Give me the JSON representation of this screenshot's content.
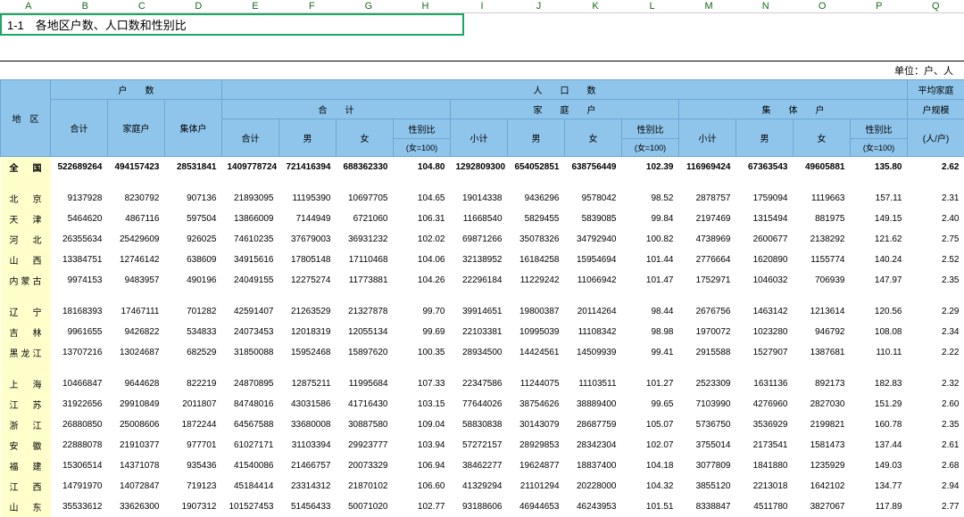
{
  "cols": [
    "A",
    "B",
    "C",
    "D",
    "E",
    "F",
    "G",
    "H",
    "I",
    "J",
    "K",
    "L",
    "M",
    "N",
    "O",
    "P",
    "Q"
  ],
  "formula": "1-1　各地区户数、人口数和性别比",
  "unit": "单位：户、人",
  "hdr": {
    "region": "地　区",
    "hh_group": "户　　数",
    "hh_total": "合计",
    "hh_family": "家庭户",
    "hh_collective": "集体户",
    "pop_group": "人　　口　　数",
    "sub_total": "合　　计",
    "sub_family": "家　　庭　　户",
    "sub_collective": "集　　体　　户",
    "male": "男",
    "female": "女",
    "ratio": "性别比",
    "ratio2": "(女=100)",
    "subtotal": "小计",
    "avg1": "平均家庭",
    "avg2": "户规模",
    "avg3": "(人/户)"
  },
  "rows": [
    {
      "type": "bold",
      "r": "全　国",
      "v": [
        "522689264",
        "494157423",
        "28531841",
        "1409778724",
        "721416394",
        "688362330",
        "104.80",
        "1292809300",
        "654052851",
        "638756449",
        "102.39",
        "116969424",
        "67363543",
        "49605881",
        "135.80",
        "2.62"
      ]
    },
    {
      "type": "gap"
    },
    {
      "r": "北　京",
      "v": [
        "9137928",
        "8230792",
        "907136",
        "21893095",
        "11195390",
        "10697705",
        "104.65",
        "19014338",
        "9436296",
        "9578042",
        "98.52",
        "2878757",
        "1759094",
        "1119663",
        "157.11",
        "2.31"
      ]
    },
    {
      "r": "天　津",
      "v": [
        "5464620",
        "4867116",
        "597504",
        "13866009",
        "7144949",
        "6721060",
        "106.31",
        "11668540",
        "5829455",
        "5839085",
        "99.84",
        "2197469",
        "1315494",
        "881975",
        "149.15",
        "2.40"
      ]
    },
    {
      "r": "河　北",
      "v": [
        "26355634",
        "25429609",
        "926025",
        "74610235",
        "37679003",
        "36931232",
        "102.02",
        "69871266",
        "35078326",
        "34792940",
        "100.82",
        "4738969",
        "2600677",
        "2138292",
        "121.62",
        "2.75"
      ]
    },
    {
      "r": "山　西",
      "v": [
        "13384751",
        "12746142",
        "638609",
        "34915616",
        "17805148",
        "17110468",
        "104.06",
        "32138952",
        "16184258",
        "15954694",
        "101.44",
        "2776664",
        "1620890",
        "1155774",
        "140.24",
        "2.52"
      ]
    },
    {
      "r": "内 蒙 古",
      "v": [
        "9974153",
        "9483957",
        "490196",
        "24049155",
        "12275274",
        "11773881",
        "104.26",
        "22296184",
        "11229242",
        "11066942",
        "101.47",
        "1752971",
        "1046032",
        "706939",
        "147.97",
        "2.35"
      ]
    },
    {
      "type": "gap"
    },
    {
      "r": "辽　宁",
      "v": [
        "18168393",
        "17467111",
        "701282",
        "42591407",
        "21263529",
        "21327878",
        "99.70",
        "39914651",
        "19800387",
        "20114264",
        "98.44",
        "2676756",
        "1463142",
        "1213614",
        "120.56",
        "2.29"
      ]
    },
    {
      "r": "吉　林",
      "v": [
        "9961655",
        "9426822",
        "534833",
        "24073453",
        "12018319",
        "12055134",
        "99.69",
        "22103381",
        "10995039",
        "11108342",
        "98.98",
        "1970072",
        "1023280",
        "946792",
        "108.08",
        "2.34"
      ]
    },
    {
      "r": "黑 龙 江",
      "v": [
        "13707216",
        "13024687",
        "682529",
        "31850088",
        "15952468",
        "15897620",
        "100.35",
        "28934500",
        "14424561",
        "14509939",
        "99.41",
        "2915588",
        "1527907",
        "1387681",
        "110.11",
        "2.22"
      ]
    },
    {
      "type": "gap"
    },
    {
      "r": "上　海",
      "v": [
        "10466847",
        "9644628",
        "822219",
        "24870895",
        "12875211",
        "11995684",
        "107.33",
        "22347586",
        "11244075",
        "11103511",
        "101.27",
        "2523309",
        "1631136",
        "892173",
        "182.83",
        "2.32"
      ]
    },
    {
      "r": "江　苏",
      "v": [
        "31922656",
        "29910849",
        "2011807",
        "84748016",
        "43031586",
        "41716430",
        "103.15",
        "77644026",
        "38754626",
        "38889400",
        "99.65",
        "7103990",
        "4276960",
        "2827030",
        "151.29",
        "2.60"
      ]
    },
    {
      "r": "浙　江",
      "v": [
        "26880850",
        "25008606",
        "1872244",
        "64567588",
        "33680008",
        "30887580",
        "109.04",
        "58830838",
        "30143079",
        "28687759",
        "105.07",
        "5736750",
        "3536929",
        "2199821",
        "160.78",
        "2.35"
      ]
    },
    {
      "r": "安　徽",
      "v": [
        "22888078",
        "21910377",
        "977701",
        "61027171",
        "31103394",
        "29923777",
        "103.94",
        "57272157",
        "28929853",
        "28342304",
        "102.07",
        "3755014",
        "2173541",
        "1581473",
        "137.44",
        "2.61"
      ]
    },
    {
      "r": "福　建",
      "v": [
        "15306514",
        "14371078",
        "935436",
        "41540086",
        "21466757",
        "20073329",
        "106.94",
        "38462277",
        "19624877",
        "18837400",
        "104.18",
        "3077809",
        "1841880",
        "1235929",
        "149.03",
        "2.68"
      ]
    },
    {
      "r": "江　西",
      "v": [
        "14791970",
        "14072847",
        "719123",
        "45184414",
        "23314312",
        "21870102",
        "106.60",
        "41329294",
        "21101294",
        "20228000",
        "104.32",
        "3855120",
        "2213018",
        "1642102",
        "134.77",
        "2.94"
      ]
    },
    {
      "r": "山　东",
      "v": [
        "35533612",
        "33626300",
        "1907312",
        "101527453",
        "51456433",
        "50071020",
        "102.77",
        "93188606",
        "46944653",
        "46243953",
        "101.51",
        "8338847",
        "4511780",
        "3827067",
        "117.89",
        "2.77"
      ]
    }
  ]
}
